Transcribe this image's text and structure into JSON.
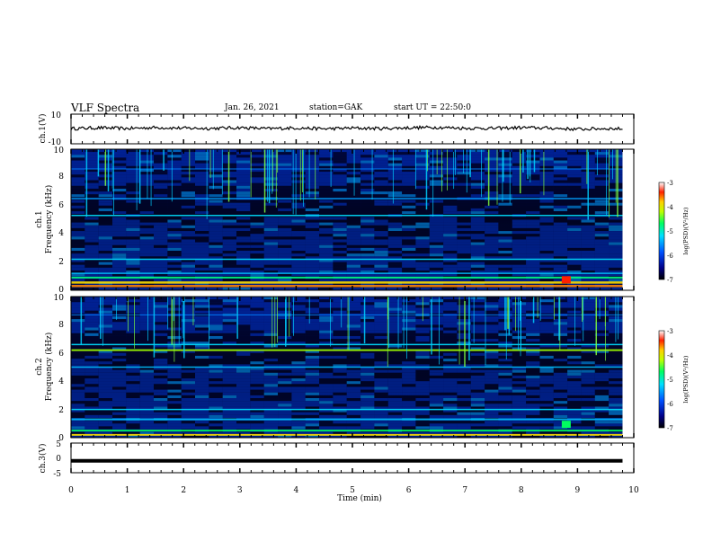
{
  "header": {
    "title": "VLF Spectra",
    "date": "Jan. 26, 2021",
    "station": "station=GAK",
    "start": "start UT = 22:50:0"
  },
  "chart_data": [
    {
      "type": "line",
      "panel": "ch1-waveform",
      "ylabel": "ch.1(V)",
      "ylim": [
        -10,
        10
      ],
      "yticks": [
        "10",
        "-10"
      ],
      "x": [
        0,
        0.5,
        1,
        1.5,
        2,
        2.5,
        3,
        3.5,
        4,
        4.5,
        5,
        5.5,
        6,
        6.5,
        7,
        7.5,
        8,
        8.5,
        9,
        9.5,
        9.8
      ],
      "y": [
        0.2,
        0.8,
        0.3,
        1.0,
        0.5,
        0.4,
        0.9,
        0.2,
        0.7,
        0.1,
        0.6,
        0.3,
        0.8,
        1.1,
        0.5,
        0.4,
        0.9,
        0.6,
        -0.2,
        0.3,
        0.1
      ]
    },
    {
      "type": "heatmap",
      "panel": "ch1-spectrogram",
      "ylabel": "Frequency (kHz)",
      "channel_label": "ch.1",
      "ylim": [
        0,
        10
      ],
      "yticks": [
        "0",
        "2",
        "4",
        "6",
        "8",
        "10"
      ],
      "colorbar_label": "log(PSD)(V²/Hz)",
      "colorbar_ticks": [
        "-3",
        "-4",
        "-5",
        "-6",
        "-7"
      ],
      "color_range": [
        -7,
        -3
      ]
    },
    {
      "type": "heatmap",
      "panel": "ch2-spectrogram",
      "ylabel": "Frequency (kHz)",
      "channel_label": "ch.2",
      "ylim": [
        0,
        10
      ],
      "yticks": [
        "0",
        "2",
        "4",
        "6",
        "8",
        "10"
      ],
      "colorbar_label": "log(PSD)(V²/Hz)",
      "colorbar_ticks": [
        "-3",
        "-4",
        "-5",
        "-6",
        "-7"
      ],
      "color_range": [
        -7,
        -3
      ]
    },
    {
      "type": "line",
      "panel": "ch3-waveform",
      "ylabel": "ch.3(V)",
      "ylim": [
        -5,
        5
      ],
      "yticks": [
        "5",
        "0",
        "-5"
      ],
      "x": [
        0,
        9.8
      ],
      "y": [
        -1,
        -1
      ]
    }
  ],
  "xaxis": {
    "label": "Time (min)",
    "ticks": [
      "0",
      "1",
      "2",
      "3",
      "4",
      "5",
      "6",
      "7",
      "8",
      "9",
      "10"
    ],
    "xlim": [
      0,
      10
    ]
  },
  "colors": {
    "background": "#000044",
    "ink": "#000000"
  }
}
